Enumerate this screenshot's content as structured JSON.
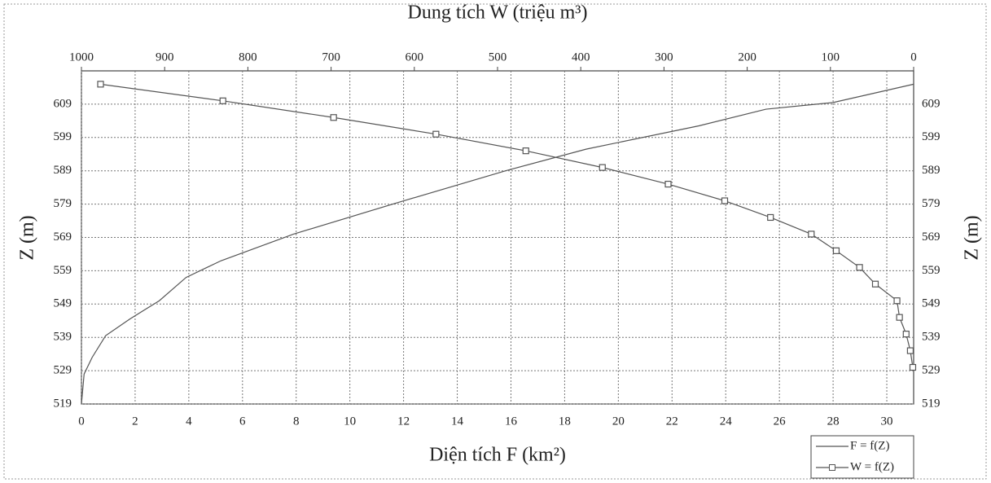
{
  "chart_data": {
    "type": "line",
    "top_xlabel": "Dung tích W (triệu m³)",
    "xlabel": "Diện tích F (km²)",
    "ylabel": "Z (m)",
    "xlim": [
      0,
      31
    ],
    "xticks": [
      0,
      2,
      4,
      6,
      8,
      10,
      12,
      14,
      16,
      18,
      20,
      22,
      24,
      26,
      28,
      30
    ],
    "x2lim": [
      1000,
      0
    ],
    "x2ticks": [
      1000,
      900,
      800,
      700,
      600,
      500,
      400,
      300,
      200,
      100,
      0
    ],
    "ylim": [
      519,
      619
    ],
    "yticks": [
      519,
      529,
      539,
      549,
      559,
      569,
      579,
      589,
      599,
      609
    ],
    "grid": true,
    "legend": "lower right",
    "series": [
      {
        "name": "F = f(Z)",
        "color": "#555555",
        "axis": "x",
        "marker": false,
        "z": [
          519,
          528,
          533,
          539.5,
          544.5,
          550,
          557,
          562,
          570,
          579.5,
          589,
          595.5,
          602.5,
          607.5,
          609.5,
          615
        ],
        "values": [
          0,
          0.1,
          0.4,
          0.9,
          1.8,
          2.9,
          3.9,
          5.2,
          7.9,
          11.8,
          15.8,
          18.8,
          23,
          25.5,
          28,
          31
        ]
      },
      {
        "name": "W = f(Z)",
        "color": "#555555",
        "axis": "x2",
        "marker": true,
        "z": [
          615,
          610,
          605,
          600,
          595,
          590,
          585,
          580,
          575,
          570,
          565,
          560,
          555,
          550,
          545,
          540,
          535,
          530
        ],
        "values": [
          977,
          830,
          697,
          574,
          466,
          374,
          295,
          227,
          172,
          123,
          93,
          65,
          46,
          20,
          17,
          9,
          4,
          1
        ]
      }
    ]
  }
}
